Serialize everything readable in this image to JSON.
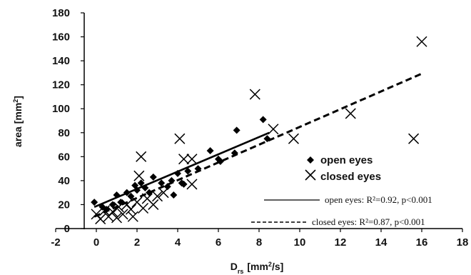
{
  "chart_data": {
    "type": "scatter",
    "title": "",
    "xlabel": "D",
    "xlabel_sub": "rs",
    "xlabel_unit": "[mm",
    "xlabel_sup": "2",
    "xlabel_unit_end": "/s]",
    "ylabel": "area [mm",
    "ylabel_sup": "2",
    "ylabel_end": "]",
    "xlim": [
      -2,
      18
    ],
    "ylim": [
      0,
      180
    ],
    "xticks": [
      "-2",
      "0",
      "2",
      "4",
      "6",
      "8",
      "10",
      "12",
      "14",
      "16",
      "18"
    ],
    "yticks": [
      "0",
      "20",
      "40",
      "60",
      "80",
      "100",
      "120",
      "140",
      "160",
      "180"
    ],
    "grid": false,
    "legend_position": "right",
    "series": [
      {
        "name": "open eyes",
        "marker": "diamond",
        "color": "#000000",
        "points": [
          [
            -0.1,
            22
          ],
          [
            0.3,
            18
          ],
          [
            0.5,
            16
          ],
          [
            0.8,
            20
          ],
          [
            1.0,
            28
          ],
          [
            1.2,
            22
          ],
          [
            1.5,
            30
          ],
          [
            1.7,
            27
          ],
          [
            1.9,
            36
          ],
          [
            2.0,
            32
          ],
          [
            2.2,
            38
          ],
          [
            2.4,
            34
          ],
          [
            2.6,
            30
          ],
          [
            2.8,
            43
          ],
          [
            3.2,
            38
          ],
          [
            3.5,
            35
          ],
          [
            3.7,
            40
          ],
          [
            3.8,
            28
          ],
          [
            4.0,
            46
          ],
          [
            4.2,
            38
          ],
          [
            4.3,
            37
          ],
          [
            4.5,
            48
          ],
          [
            5.0,
            50
          ],
          [
            5.6,
            65
          ],
          [
            6.0,
            58
          ],
          [
            6.1,
            56
          ],
          [
            6.8,
            63
          ],
          [
            6.9,
            82
          ],
          [
            8.2,
            91
          ],
          [
            8.4,
            75
          ]
        ]
      },
      {
        "name": "closed eyes",
        "marker": "cross",
        "color": "#000000",
        "points": [
          [
            0.0,
            12
          ],
          [
            0.2,
            8
          ],
          [
            0.4,
            15
          ],
          [
            0.6,
            10
          ],
          [
            0.8,
            14
          ],
          [
            1.0,
            9
          ],
          [
            1.1,
            18
          ],
          [
            1.3,
            12
          ],
          [
            1.5,
            20
          ],
          [
            1.7,
            16
          ],
          [
            1.8,
            10
          ],
          [
            2.0,
            22
          ],
          [
            2.1,
            44
          ],
          [
            2.2,
            60
          ],
          [
            2.3,
            17
          ],
          [
            2.5,
            25
          ],
          [
            2.8,
            20
          ],
          [
            3.0,
            27
          ],
          [
            3.3,
            30
          ],
          [
            4.1,
            75
          ],
          [
            4.3,
            58
          ],
          [
            4.7,
            58
          ],
          [
            4.7,
            37
          ],
          [
            7.8,
            112
          ],
          [
            8.7,
            83
          ],
          [
            9.7,
            75
          ],
          [
            12.5,
            96
          ],
          [
            15.6,
            75
          ],
          [
            16.0,
            156
          ]
        ]
      }
    ],
    "fits": [
      {
        "name": "open eyes",
        "style": "solid",
        "line": [
          [
            -0.1,
            18
          ],
          [
            8.5,
            80
          ]
        ],
        "annotation": "open eyes: R²=0.92, p<0.001"
      },
      {
        "name": "closed eyes",
        "style": "dashed",
        "line": [
          [
            -0.1,
            10
          ],
          [
            16.1,
            130
          ]
        ],
        "annotation": "closed eyes: R²=0.87, p<0.001"
      }
    ]
  }
}
